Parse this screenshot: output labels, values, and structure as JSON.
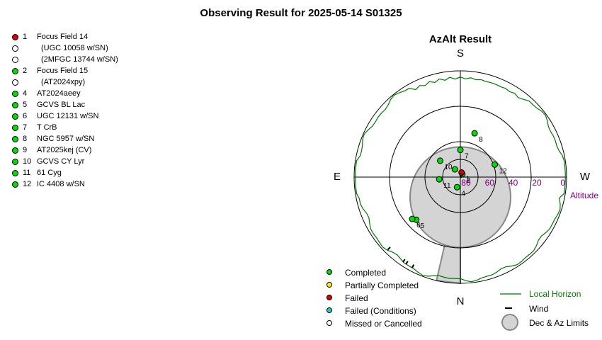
{
  "title": "Observing Result for 2025-05-14 S01325",
  "targets": [
    {
      "num": "1",
      "name": "Focus Field 14",
      "status": "failed"
    },
    {
      "num": "",
      "name": "(UGC 10058 w/SN)",
      "status": "missed",
      "sub": true
    },
    {
      "num": "",
      "name": "(2MFGC 13744 w/SN)",
      "status": "missed",
      "sub": true
    },
    {
      "num": "2",
      "name": "Focus Field 15",
      "status": "completed"
    },
    {
      "num": "",
      "name": "(AT2024xpy)",
      "status": "missed",
      "sub": true
    },
    {
      "num": "4",
      "name": "AT2024aeey",
      "status": "completed"
    },
    {
      "num": "5",
      "name": "GCVS BL Lac",
      "status": "completed"
    },
    {
      "num": "6",
      "name": "UGC 12131 w/SN",
      "status": "completed"
    },
    {
      "num": "7",
      "name": "T CrB",
      "status": "completed"
    },
    {
      "num": "8",
      "name": "NGC 5957 w/SN",
      "status": "completed"
    },
    {
      "num": "9",
      "name": "AT2025kej (CV)",
      "status": "completed"
    },
    {
      "num": "10",
      "name": "GCVS CY Lyr",
      "status": "completed"
    },
    {
      "num": "11",
      "name": "61 Cyg",
      "status": "completed"
    },
    {
      "num": "12",
      "name": "IC 4408 w/SN",
      "status": "completed"
    }
  ],
  "status_colors": {
    "completed": "#00dd00",
    "partial": "#ffee00",
    "failed": "#dd0000",
    "failed_conditions": "#22cccc",
    "missed": "#ffffff"
  },
  "chart_data": {
    "type": "scatter",
    "projection": "polar-azimuth-altitude",
    "title": "AzAlt Result",
    "directions": {
      "top": "S",
      "bottom": "N",
      "left": "E",
      "right": "W"
    },
    "altitude_label": "Altitude",
    "altitude_ticks": [
      "80",
      "60",
      "40",
      "20",
      "0"
    ],
    "altitude_tick_values": [
      80,
      60,
      40,
      20,
      0
    ],
    "points": [
      {
        "label": "2",
        "az": 215,
        "alt": 87,
        "status": "completed"
      },
      {
        "label": "1",
        "az": 195,
        "alt": 86,
        "status": "failed"
      },
      {
        "label": "4",
        "az": 18,
        "alt": 81,
        "status": "completed"
      },
      {
        "label": "5",
        "az": 46,
        "alt": 38,
        "status": "completed"
      },
      {
        "label": "6",
        "az": 49,
        "alt": 36,
        "status": "completed"
      },
      {
        "label": "7",
        "az": 180,
        "alt": 67,
        "status": "completed"
      },
      {
        "label": "8",
        "az": 198,
        "alt": 51,
        "status": "completed"
      },
      {
        "label": "9",
        "az": 145,
        "alt": 82,
        "status": "completed"
      },
      {
        "label": "10",
        "az": 129,
        "alt": 68,
        "status": "completed"
      },
      {
        "label": "11",
        "az": 84,
        "alt": 72,
        "status": "completed"
      },
      {
        "label": "12",
        "az": 250,
        "alt": 59,
        "status": "completed"
      }
    ],
    "local_horizon_color": "#007700",
    "limits_fill": "#d4d4d4",
    "limits_circle": {
      "az": 0,
      "alt": 73,
      "radius_deg": 12
    },
    "limits_wedge": {
      "az_start": 0,
      "az_end": 13,
      "alt_min": 0,
      "alt_max": 70
    },
    "wind_marks": [
      {
        "az": 28,
        "alt": 0
      },
      {
        "az": 32,
        "alt": 0
      },
      {
        "az": 34,
        "alt": 0
      },
      {
        "az": 45,
        "alt": 0
      }
    ]
  },
  "legend": {
    "status_items": [
      {
        "key": "completed",
        "label": "Completed"
      },
      {
        "key": "partial",
        "label": "Partially Completed"
      },
      {
        "key": "failed",
        "label": "Failed"
      },
      {
        "key": "failed_conditions",
        "label": "Failed (Conditions)"
      },
      {
        "key": "missed",
        "label": "Missed or Cancelled"
      }
    ],
    "local_horizon": "Local Horizon",
    "wind": "Wind",
    "limits": "Dec & Az Limits"
  }
}
